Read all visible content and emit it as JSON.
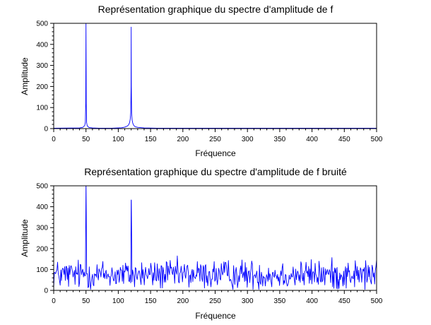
{
  "chart_data": [
    {
      "type": "line",
      "title": "Représentation graphique du spectre d'amplitude de f",
      "xlabel": "Fréquence",
      "ylabel": "Amplitude",
      "xlim": [
        0,
        500
      ],
      "ylim": [
        0,
        500
      ],
      "xticks": [
        0,
        50,
        100,
        150,
        200,
        250,
        300,
        350,
        400,
        450,
        500
      ],
      "yticks": [
        0,
        100,
        200,
        300,
        400,
        500
      ],
      "grid": false,
      "series_color": "#0000ff",
      "series": [
        {
          "x": [
            0,
            40,
            45,
            48,
            49,
            49.6,
            50,
            50.4,
            51,
            52,
            55,
            60,
            70,
            90,
            105,
            110,
            114,
            116,
            117.5,
            118.5,
            119.3,
            119.8,
            120,
            120.2,
            120.7,
            121.5,
            122.5,
            124,
            126,
            130,
            140,
            160,
            200,
            300,
            400,
            500
          ],
          "y": [
            2,
            3,
            6,
            14,
            30,
            120,
            500,
            120,
            28,
            12,
            5,
            3,
            2,
            2,
            4,
            7,
            12,
            18,
            28,
            45,
            75,
            200,
            482,
            200,
            70,
            40,
            25,
            15,
            9,
            6,
            3,
            2,
            2,
            2,
            2,
            2
          ]
        }
      ]
    },
    {
      "type": "line",
      "title": "Représentation graphique du spectre d'amplitude de f bruité",
      "xlabel": "Fréquence",
      "ylabel": "Amplitude",
      "xlim": [
        0,
        500
      ],
      "ylim": [
        0,
        500
      ],
      "xticks": [
        0,
        50,
        100,
        150,
        200,
        250,
        300,
        350,
        400,
        450,
        500
      ],
      "yticks": [
        0,
        100,
        200,
        300,
        400,
        500
      ],
      "grid": false,
      "series_color": "#0000ff",
      "noise": {
        "count": 500,
        "mean": 75,
        "min": 5,
        "max": 190
      },
      "peaks": [
        {
          "x": 50,
          "y": 500
        },
        {
          "x": 120,
          "y": 432
        }
      ]
    }
  ]
}
